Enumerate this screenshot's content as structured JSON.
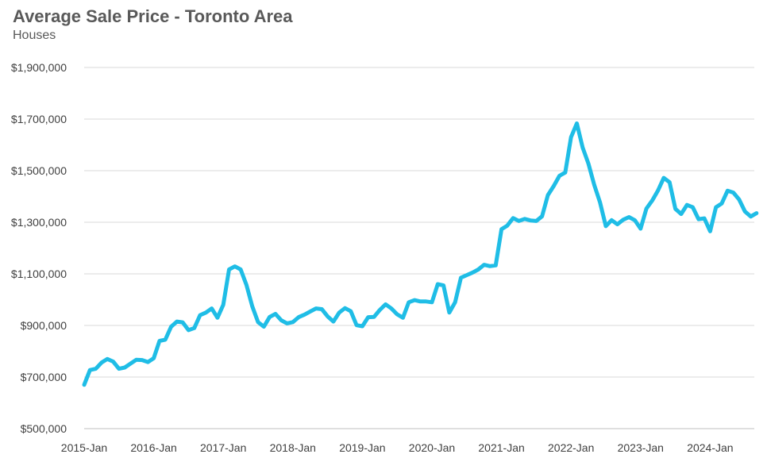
{
  "chart_data": {
    "type": "line",
    "title": "Average Sale Price - Toronto Area",
    "subtitle": "Houses",
    "xlabel": "",
    "ylabel": "",
    "ylim": [
      500000,
      1900000
    ],
    "yticks": [
      500000,
      700000,
      900000,
      1100000,
      1300000,
      1500000,
      1700000,
      1900000
    ],
    "ytick_labels": [
      "$500,000",
      "$700,000",
      "$900,000",
      "$1,100,000",
      "$1,300,000",
      "$1,500,000",
      "$1,700,000",
      "$1,900,000"
    ],
    "xtick_labels": [
      "2015-Jan",
      "2016-Jan",
      "2017-Jan",
      "2018-Jan",
      "2019-Jan",
      "2020-Jan",
      "2021-Jan",
      "2022-Jan",
      "2023-Jan",
      "2024-Jan"
    ],
    "grid": true,
    "line_color": "#1fbde6",
    "series": [
      {
        "values": [
          670000,
          727000,
          732000,
          756000,
          770000,
          760000,
          732000,
          737000,
          752000,
          767000,
          766000,
          758000,
          773000,
          840000,
          845000,
          895000,
          915000,
          912000,
          882000,
          890000,
          940000,
          950000,
          966000,
          930000,
          980000,
          1117000,
          1129000,
          1117000,
          1057000,
          974000,
          913000,
          895000,
          933000,
          945000,
          920000,
          908000,
          913000,
          932000,
          942000,
          954000,
          966000,
          963000,
          935000,
          915000,
          950000,
          967000,
          955000,
          901000,
          897000,
          932000,
          933000,
          960000,
          982000,
          966000,
          943000,
          930000,
          990000,
          998000,
          993000,
          993000,
          990000,
          1060000,
          1055000,
          950000,
          990000,
          1085000,
          1095000,
          1105000,
          1117000,
          1135000,
          1130000,
          1133000,
          1273000,
          1287000,
          1316000,
          1305000,
          1313000,
          1307000,
          1305000,
          1323000,
          1405000,
          1440000,
          1480000,
          1493000,
          1630000,
          1683000,
          1590000,
          1527000,
          1445000,
          1377000,
          1285000,
          1308000,
          1292000,
          1310000,
          1320000,
          1308000,
          1275000,
          1353000,
          1384000,
          1423000,
          1472000,
          1455000,
          1352000,
          1332000,
          1367000,
          1358000,
          1312000,
          1315000,
          1265000,
          1358000,
          1373000,
          1422000,
          1415000,
          1388000,
          1342000,
          1322000,
          1335000
        ]
      }
    ]
  }
}
